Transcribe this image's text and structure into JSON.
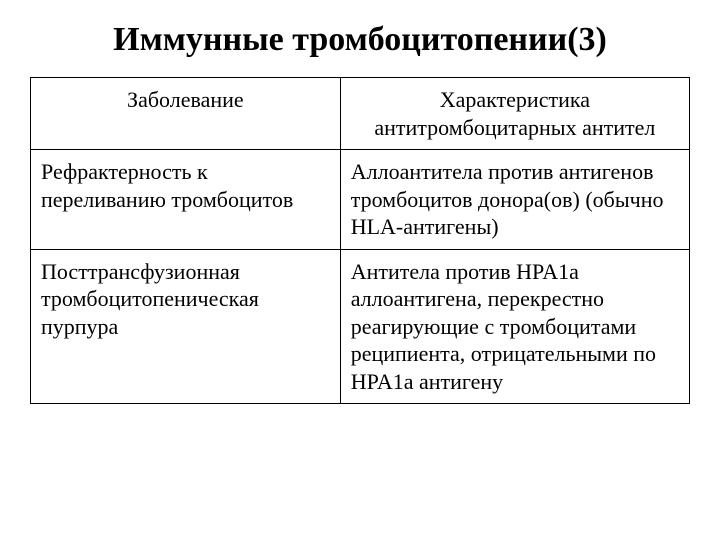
{
  "title": "Иммунные тромбоцитопении(3)",
  "table": {
    "headers": {
      "disease": "Заболевание",
      "characteristic": "Характеристика антитромбоцитарных антител"
    },
    "rows": [
      {
        "disease": "Рефрактерность к переливанию тромбоцитов",
        "characteristic": "Аллоантитела против антигенов тромбоцитов донора(ов) (обычно HLA-антигены)"
      },
      {
        "disease": "Посттрансфузионная тромбоцитопеническая пурпура",
        "characteristic": "Антитела против HPA1a аллоантигена, перекрестно реагирующие с тромбоцитами реципиента, отрицательными по HPA1a антигену"
      }
    ]
  },
  "styling": {
    "background_color": "#ffffff",
    "border_color": "#000000",
    "title_fontsize": 34,
    "title_fontweight": "bold",
    "cell_fontsize": 22,
    "font_family": "Times New Roman",
    "column_widths": [
      "47%",
      "53%"
    ]
  }
}
